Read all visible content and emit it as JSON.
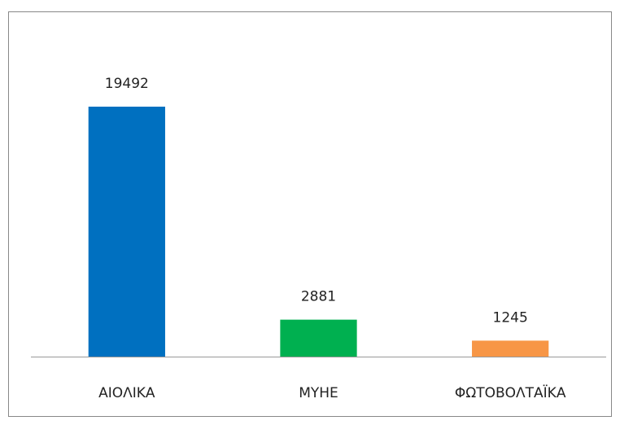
{
  "chart_data": {
    "type": "bar",
    "categories": [
      "ΑΙΟΛΙΚΑ",
      "ΜΥΗΕ",
      "ΦΩΤΟΒΟΛΤΑΪΚΑ"
    ],
    "values": [
      19492,
      2881,
      1245
    ],
    "colors": [
      "#0070c0",
      "#00b050",
      "#f79646"
    ],
    "data_labels": true
  }
}
